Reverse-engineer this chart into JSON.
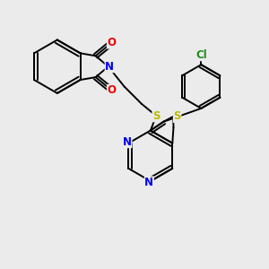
{
  "bg_color": "#ebebeb",
  "bond_color": "#000000",
  "bond_width": 1.4,
  "atom_colors": {
    "N": "#0000ee",
    "O": "#ee0000",
    "S": "#bbbb00",
    "Cl": "#228b22",
    "C": "#000000"
  },
  "font_size": 8.5,
  "figsize": [
    3.0,
    3.0
  ],
  "dpi": 100
}
